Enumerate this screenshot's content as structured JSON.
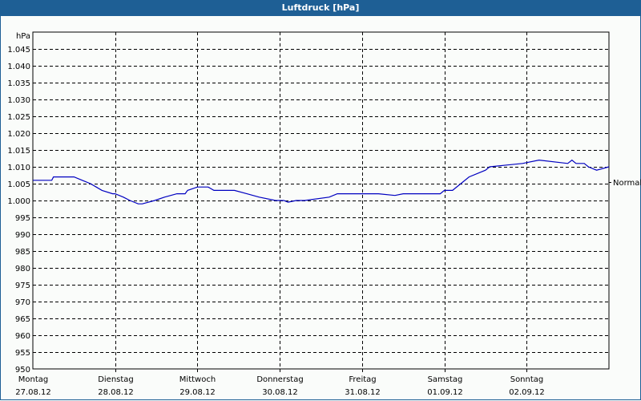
{
  "window": {
    "title": "Luftdruck [hPa]"
  },
  "chart_data": {
    "type": "line",
    "title": "Luftdruck [hPa]",
    "ylabel": "hPa",
    "xlabel": "",
    "ylim": [
      950,
      1050
    ],
    "grid": true,
    "y_ticks": [
      "1.045",
      "1.040",
      "1.035",
      "1.030",
      "1.025",
      "1.020",
      "1.015",
      "1.010",
      "1.005",
      "1.000",
      "995",
      "990",
      "985",
      "980",
      "975",
      "970",
      "965",
      "960",
      "955",
      "950"
    ],
    "x_ticks": [
      {
        "day": "Montag",
        "date": "27.08.12"
      },
      {
        "day": "Dienstag",
        "date": "28.08.12"
      },
      {
        "day": "Mittwoch",
        "date": "29.08.12"
      },
      {
        "day": "Donnerstag",
        "date": "30.08.12"
      },
      {
        "day": "Freitag",
        "date": "31.08.12"
      },
      {
        "day": "Samstag",
        "date": "01.09.12"
      },
      {
        "day": "Sonntag",
        "date": "02.09.12"
      }
    ],
    "reference_line": {
      "label": "Normal",
      "value": 1005.5
    },
    "series": [
      {
        "name": "Luftdruck",
        "color": "#0000c0",
        "x_days": [
          0.0,
          0.23,
          0.25,
          0.5,
          0.6,
          0.7,
          0.77,
          0.84,
          0.97,
          1.0,
          1.1,
          1.18,
          1.28,
          1.33,
          1.48,
          1.6,
          1.75,
          1.85,
          1.88,
          2.0,
          2.13,
          2.2,
          2.45,
          2.6,
          2.75,
          2.95,
          3.0,
          3.05,
          3.1,
          3.2,
          3.3,
          3.6,
          3.7,
          3.75,
          3.85,
          4.2,
          4.4,
          4.5,
          4.95,
          5.0,
          5.1,
          5.2,
          5.3,
          5.5,
          5.55,
          5.95,
          6.15,
          6.5,
          6.5,
          6.55,
          6.6,
          6.7,
          6.75,
          6.85,
          7.0
        ],
        "values": [
          1006,
          1006,
          1007,
          1007,
          1006,
          1005,
          1004,
          1003,
          1002,
          1002,
          1001,
          1000,
          999,
          999,
          1000,
          1001,
          1002,
          1002,
          1003,
          1004,
          1004,
          1003,
          1003,
          1002,
          1001,
          1000,
          1000,
          1000,
          999.5,
          1000,
          1000,
          1001,
          1002,
          1002,
          1002,
          1002,
          1001.5,
          1002,
          1002,
          1003,
          1003,
          1005,
          1007,
          1009,
          1010,
          1011,
          1012,
          1011,
          1011,
          1012,
          1011,
          1011,
          1010,
          1009,
          1010
        ]
      }
    ]
  }
}
